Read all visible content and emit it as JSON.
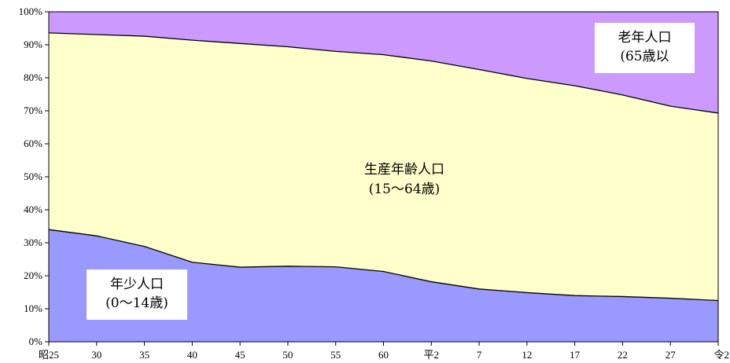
{
  "chart_data": {
    "type": "area",
    "stacked": true,
    "normalized": true,
    "categories": [
      "昭25",
      "30",
      "35",
      "40",
      "45",
      "50",
      "55",
      "60",
      "平2",
      "7",
      "12",
      "17",
      "22",
      "27",
      "令2"
    ],
    "series": [
      {
        "name": "年少人口（0〜14歳）",
        "color": "#9999ff",
        "values": [
          34.0,
          32.1,
          28.9,
          24.1,
          22.6,
          22.9,
          22.7,
          21.3,
          18.2,
          16.0,
          14.9,
          14.0,
          13.7,
          13.2,
          12.5
        ]
      },
      {
        "name": "生産年齢人口（15〜64歳）",
        "color": "#ffffcc",
        "values": [
          59.6,
          61.0,
          63.7,
          67.3,
          67.8,
          66.5,
          65.3,
          65.7,
          66.9,
          66.5,
          64.9,
          63.6,
          61.1,
          58.2,
          56.8
        ]
      },
      {
        "name": "老年人口（65歳以",
        "color": "#cc99ff",
        "values": [
          6.4,
          6.9,
          7.4,
          8.6,
          9.6,
          10.6,
          12.0,
          13.0,
          14.9,
          17.5,
          20.2,
          22.4,
          25.2,
          28.6,
          30.7
        ]
      }
    ],
    "ylim": [
      0,
      100
    ],
    "y_ticks": [
      "0%",
      "10%",
      "20%",
      "30%",
      "40%",
      "50%",
      "60%",
      "70%",
      "80%",
      "90%",
      "100%"
    ],
    "labels": {
      "young": [
        "年少人口",
        "(0〜14歳)"
      ],
      "working": [
        "生産年齢人口",
        "(15〜64歳)"
      ],
      "old": [
        "老年人口",
        "(65歳以"
      ]
    },
    "grid": false,
    "legend": "none"
  }
}
